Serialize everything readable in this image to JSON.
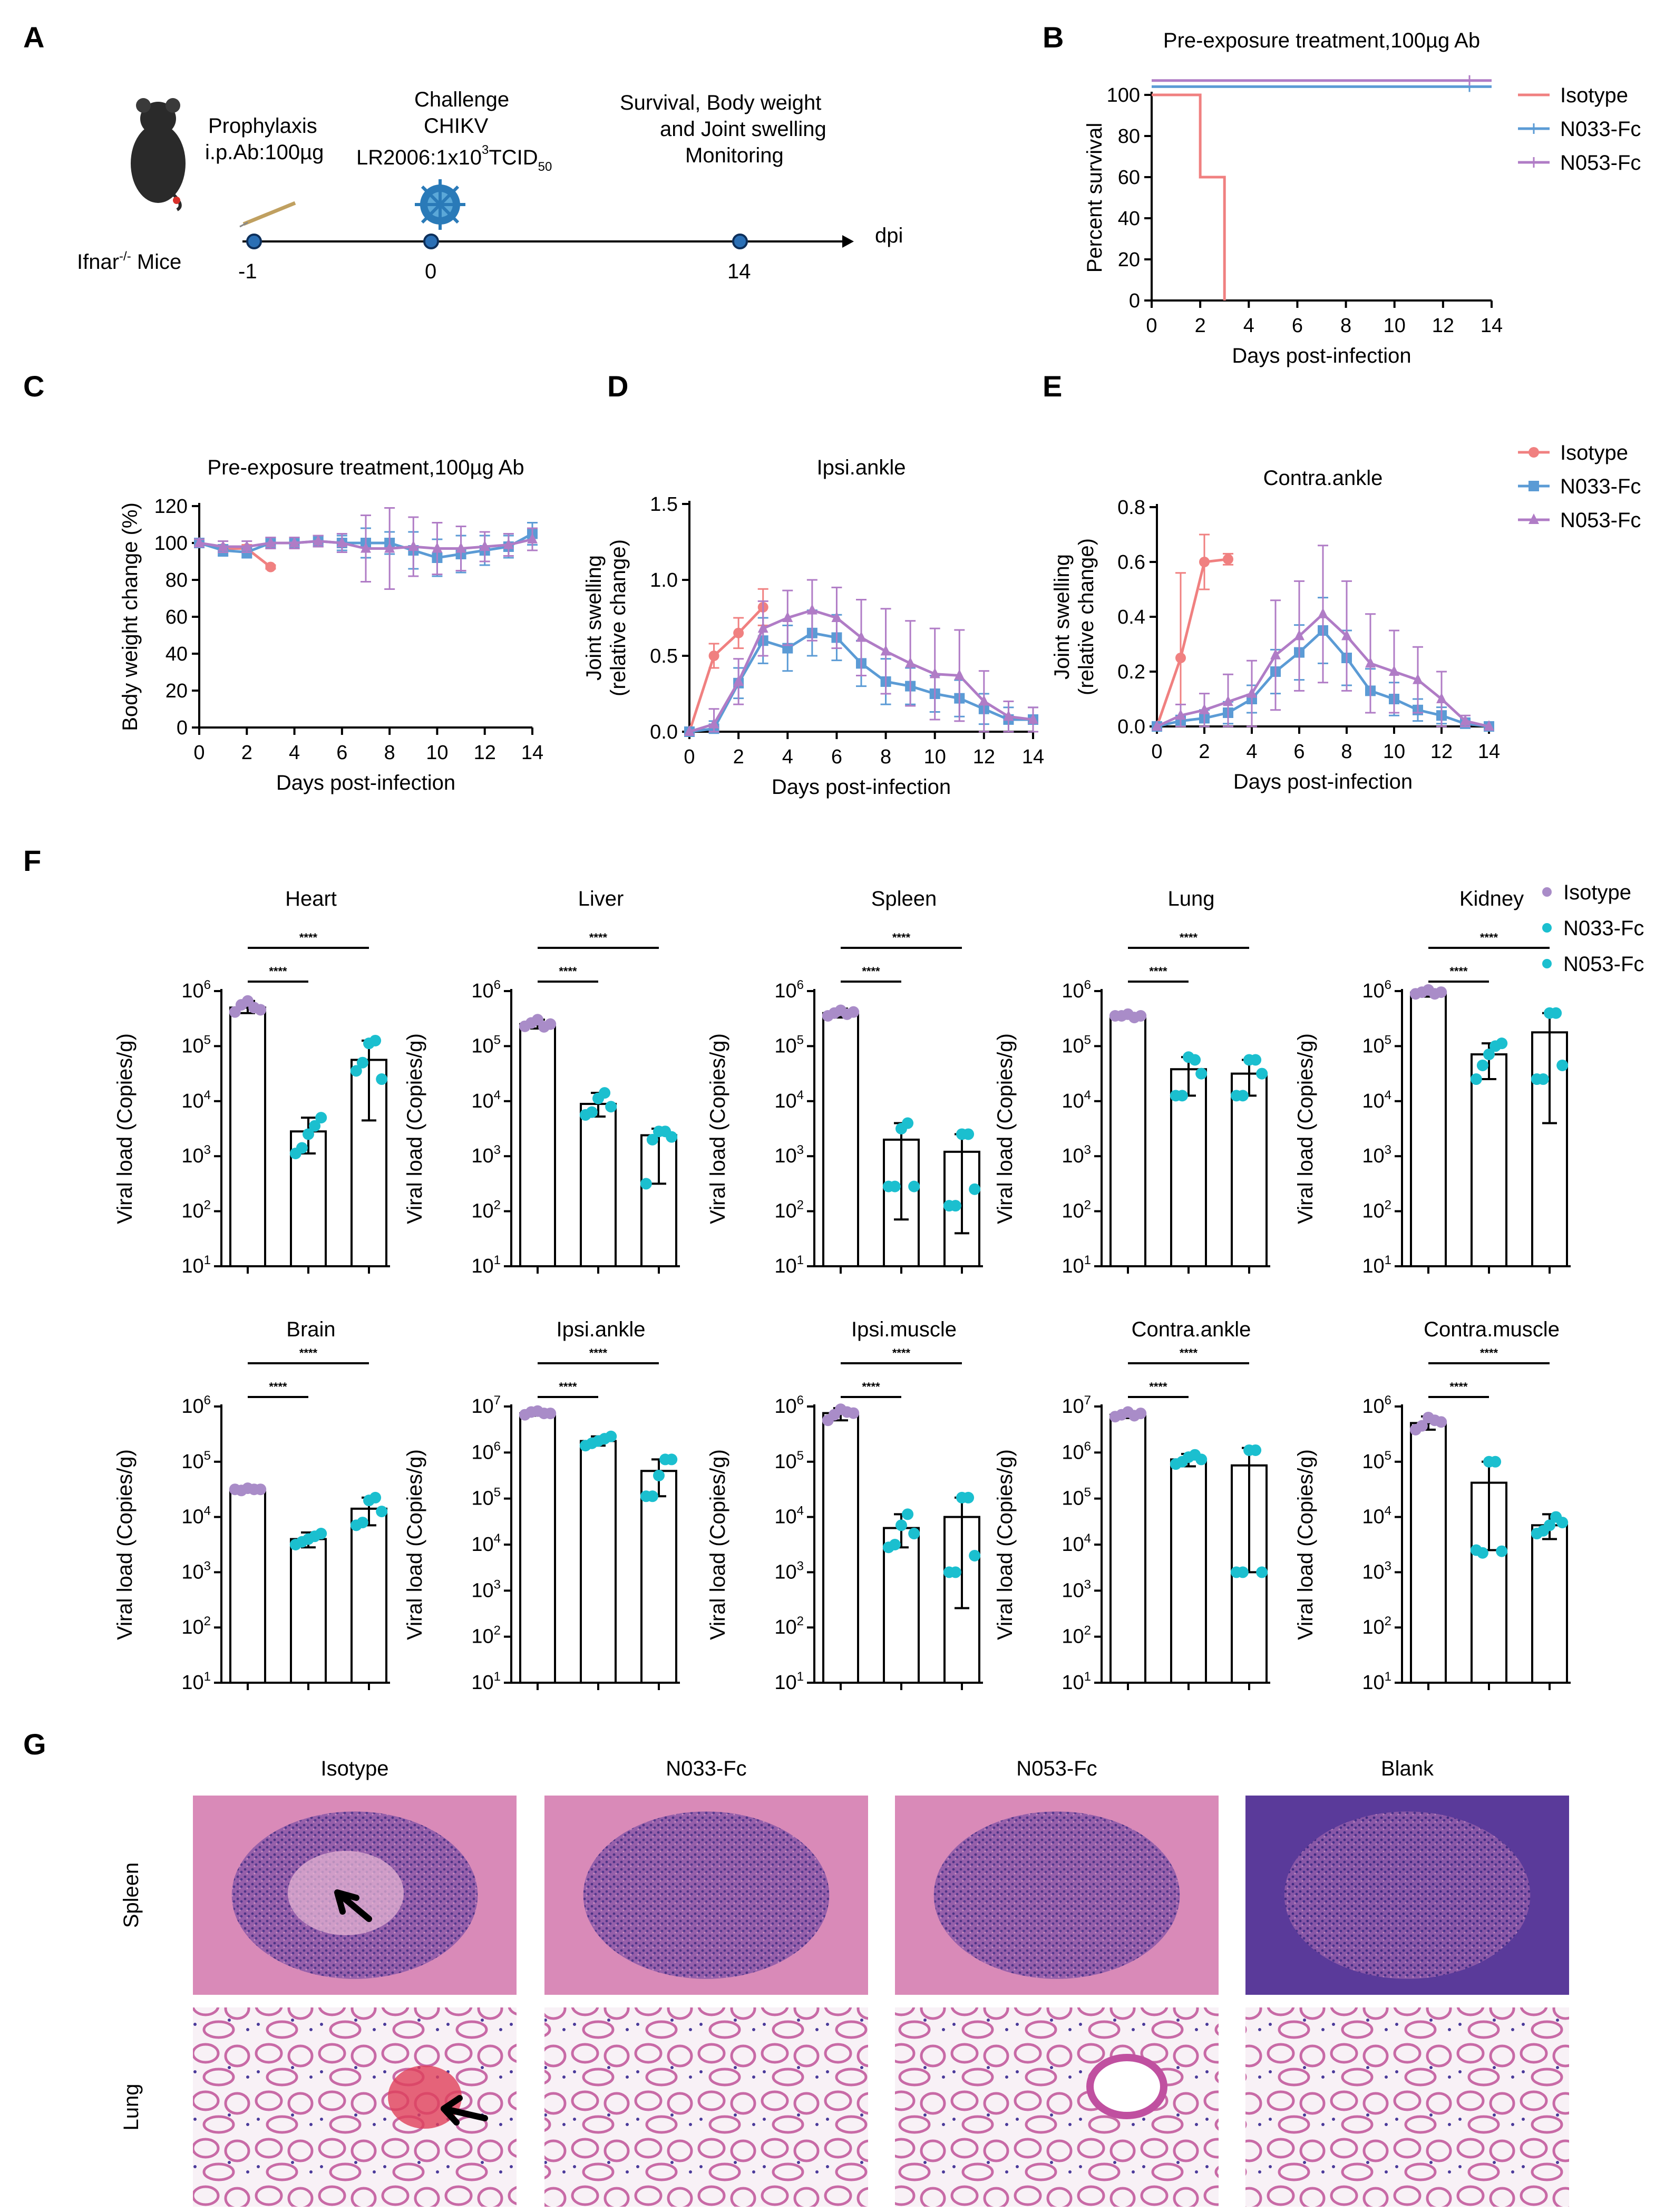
{
  "labels": {
    "A": "A",
    "B": "B",
    "C": "C",
    "D": "D",
    "E": "E",
    "F": "F",
    "G": "G"
  },
  "colors": {
    "isotype": "#f08080",
    "n033": "#5b9bd5",
    "n053": "#b07cc6",
    "dot_iso": "#a98cc8",
    "dot_ab": "#1bbfcf"
  },
  "panel_a": {
    "mouse_label": "Ifnar",
    "mouse_sup": "-/-",
    "mouse_suffix": " Mice",
    "prophylaxis": [
      "Prophylaxis",
      "i.p.Ab:100µg"
    ],
    "challenge": [
      "Challenge",
      "CHIKV"
    ],
    "challenge_dose_pre": "LR2006:1x10",
    "challenge_dose_sup": "3",
    "challenge_dose_post": "TCID",
    "challenge_dose_sub": "50",
    "monitoring": [
      "Survival, Body weight",
      "and Joint swelling",
      "Monitoring"
    ],
    "timepoints": [
      "-1",
      "0",
      "14"
    ],
    "axis_unit": "dpi",
    "icons": [
      "syringe-icon",
      "virus-icon",
      "mouse-icon"
    ]
  },
  "chart_data": [
    {
      "id": "B",
      "type": "line",
      "title": "Pre-exposure treatment,100µg Ab",
      "xlabel": "Days post-infection",
      "ylabel": "Percent survival",
      "xlim": [
        0,
        14
      ],
      "ylim": [
        0,
        100
      ],
      "xticks": [
        "0",
        "2",
        "4",
        "6",
        "8",
        "10",
        "12",
        "14"
      ],
      "yticks": [
        "0",
        "20",
        "40",
        "60",
        "80",
        "100"
      ],
      "legend": "right",
      "series": [
        {
          "name": "Isotype",
          "color": "#f08080",
          "x": [
            0,
            2,
            2,
            3,
            3
          ],
          "y": [
            100,
            100,
            60,
            60,
            0
          ]
        },
        {
          "name": "N033-Fc",
          "color": "#5b9bd5",
          "x": [
            0,
            14
          ],
          "y": [
            104,
            104
          ]
        },
        {
          "name": "N053-Fc",
          "color": "#b07cc6",
          "x": [
            0,
            14
          ],
          "y": [
            107,
            107
          ]
        }
      ]
    },
    {
      "id": "C",
      "type": "line",
      "title": "Pre-exposure treatment,100µg Ab",
      "xlabel": "Days post-infection",
      "ylabel": "Body weight change (%)",
      "xlim": [
        0,
        14
      ],
      "ylim": [
        0,
        120
      ],
      "xticks": [
        "0",
        "2",
        "4",
        "6",
        "8",
        "10",
        "12",
        "14"
      ],
      "yticks": [
        "0",
        "20",
        "40",
        "60",
        "80",
        "100",
        "120"
      ],
      "series": [
        {
          "name": "Isotype",
          "color": "#f08080",
          "x": [
            0,
            1,
            2,
            3
          ],
          "y": [
            100,
            97,
            97,
            87
          ],
          "err": [
            2,
            2,
            2,
            1
          ]
        },
        {
          "name": "N033-Fc",
          "color": "#5b9bd5",
          "x": [
            0,
            1,
            2,
            3,
            4,
            5,
            6,
            7,
            8,
            9,
            10,
            11,
            12,
            13,
            14
          ],
          "y": [
            100,
            96,
            95,
            100,
            100,
            101,
            100,
            100,
            100,
            96,
            92,
            94,
            96,
            98,
            105
          ],
          "err": [
            2,
            3,
            3,
            3,
            3,
            3,
            4,
            8,
            6,
            10,
            10,
            10,
            8,
            6,
            6
          ]
        },
        {
          "name": "N053-Fc",
          "color": "#b07cc6",
          "x": [
            0,
            1,
            2,
            3,
            4,
            5,
            6,
            7,
            8,
            9,
            10,
            11,
            12,
            13,
            14
          ],
          "y": [
            100,
            98,
            98,
            100,
            100,
            101,
            100,
            97,
            97,
            98,
            97,
            97,
            98,
            99,
            102
          ],
          "err": [
            2,
            3,
            3,
            3,
            3,
            3,
            5,
            18,
            22,
            16,
            14,
            12,
            8,
            6,
            6
          ]
        }
      ]
    },
    {
      "id": "D",
      "type": "line",
      "title": "Ipsi.ankle",
      "xlabel": "Days post-infection",
      "ylabel": "Joint swelling",
      "ylabel2": "(relative change)",
      "xlim": [
        0,
        14
      ],
      "ylim": [
        0,
        1.5
      ],
      "xticks": [
        "0",
        "2",
        "4",
        "6",
        "8",
        "10",
        "12",
        "14"
      ],
      "yticks": [
        "0.0",
        "0.5",
        "1.0",
        "1.5"
      ],
      "series": [
        {
          "name": "Isotype",
          "color": "#f08080",
          "x": [
            0,
            1,
            2,
            3
          ],
          "y": [
            0,
            0.5,
            0.65,
            0.82
          ],
          "err": [
            0,
            0.08,
            0.1,
            0.12
          ]
        },
        {
          "name": "N033-Fc",
          "color": "#5b9bd5",
          "x": [
            0,
            1,
            2,
            3,
            4,
            5,
            6,
            7,
            8,
            9,
            10,
            11,
            12,
            13,
            14
          ],
          "y": [
            0,
            0.02,
            0.32,
            0.6,
            0.55,
            0.65,
            0.62,
            0.45,
            0.33,
            0.3,
            0.25,
            0.22,
            0.15,
            0.08,
            0.08
          ],
          "err": [
            0,
            0.05,
            0.1,
            0.15,
            0.15,
            0.15,
            0.15,
            0.15,
            0.15,
            0.12,
            0.12,
            0.12,
            0.1,
            0.08,
            0.08
          ]
        },
        {
          "name": "N053-Fc",
          "color": "#b07cc6",
          "x": [
            0,
            1,
            2,
            3,
            4,
            5,
            6,
            7,
            8,
            9,
            10,
            11,
            12,
            13,
            14
          ],
          "y": [
            0,
            0.05,
            0.33,
            0.68,
            0.75,
            0.8,
            0.75,
            0.62,
            0.53,
            0.45,
            0.38,
            0.37,
            0.2,
            0.1,
            0.08
          ],
          "err": [
            0,
            0.1,
            0.15,
            0.18,
            0.18,
            0.2,
            0.2,
            0.25,
            0.28,
            0.28,
            0.3,
            0.3,
            0.2,
            0.1,
            0.08
          ]
        }
      ]
    },
    {
      "id": "E",
      "type": "line",
      "title": "Contra.ankle",
      "xlabel": "Days post-infection",
      "ylabel": "Joint swelling",
      "ylabel2": "(relative change)",
      "xlim": [
        0,
        14
      ],
      "ylim": [
        0,
        0.8
      ],
      "xticks": [
        "0",
        "2",
        "4",
        "6",
        "8",
        "10",
        "12",
        "14"
      ],
      "yticks": [
        "0.0",
        "0.2",
        "0.4",
        "0.6",
        "0.8"
      ],
      "legend": "right",
      "series": [
        {
          "name": "Isotype",
          "color": "#f08080",
          "x": [
            0,
            1,
            2,
            3
          ],
          "y": [
            0,
            0.25,
            0.6,
            0.61
          ],
          "err": [
            0,
            0.31,
            0.1,
            0.02
          ]
        },
        {
          "name": "N033-Fc",
          "color": "#5b9bd5",
          "x": [
            0,
            1,
            2,
            3,
            4,
            5,
            6,
            7,
            8,
            9,
            10,
            11,
            12,
            13,
            14
          ],
          "y": [
            0,
            0.02,
            0.03,
            0.05,
            0.1,
            0.2,
            0.27,
            0.35,
            0.25,
            0.13,
            0.1,
            0.06,
            0.04,
            0.01,
            0
          ],
          "err": [
            0,
            0.02,
            0.03,
            0.04,
            0.05,
            0.08,
            0.1,
            0.12,
            0.1,
            0.08,
            0.06,
            0.04,
            0.03,
            0.02,
            0
          ]
        },
        {
          "name": "N053-Fc",
          "color": "#b07cc6",
          "x": [
            0,
            1,
            2,
            3,
            4,
            5,
            6,
            7,
            8,
            9,
            10,
            11,
            12,
            13,
            14
          ],
          "y": [
            0,
            0.04,
            0.06,
            0.09,
            0.12,
            0.26,
            0.33,
            0.41,
            0.33,
            0.23,
            0.2,
            0.17,
            0.1,
            0.02,
            0
          ],
          "err": [
            0,
            0.04,
            0.06,
            0.1,
            0.12,
            0.2,
            0.2,
            0.25,
            0.2,
            0.18,
            0.15,
            0.12,
            0.1,
            0.02,
            0
          ]
        }
      ]
    }
  ],
  "bar_panels": {
    "ylabel": "Viral load (Copies/g)",
    "legend": [
      "Isotype",
      "N033-Fc",
      "N053-Fc"
    ],
    "sig": "****",
    "plots": [
      {
        "title": "Heart",
        "ymax": 6,
        "values": [
          5.7,
          3.45,
          4.75
        ],
        "lo": [
          5.6,
          3.05,
          3.65
        ],
        "hi": [
          5.82,
          3.7,
          5.1
        ],
        "pts": [
          [
            5.62,
            5.75,
            5.82,
            5.7,
            5.66
          ],
          [
            3.05,
            3.15,
            3.4,
            3.55,
            3.7
          ],
          [
            4.55,
            4.7,
            5.05,
            5.1,
            4.4
          ]
        ]
      },
      {
        "title": "Liver",
        "ymax": 6,
        "values": [
          5.4,
          3.95,
          3.38
        ],
        "lo": [
          5.32,
          3.72,
          2.5
        ],
        "hi": [
          5.48,
          4.15,
          3.5
        ],
        "pts": [
          [
            5.36,
            5.42,
            5.48,
            5.35,
            5.4
          ],
          [
            3.75,
            3.8,
            4.05,
            4.15,
            3.9
          ],
          [
            2.5,
            3.3,
            3.45,
            3.45,
            3.35
          ]
        ]
      },
      {
        "title": "Spleen",
        "ymax": 6,
        "values": [
          5.6,
          3.3,
          3.08
        ],
        "lo": [
          5.52,
          1.85,
          1.6
        ],
        "hi": [
          5.68,
          3.6,
          3.4
        ],
        "pts": [
          [
            5.55,
            5.6,
            5.65,
            5.58,
            5.62
          ],
          [
            2.45,
            2.45,
            3.5,
            3.6,
            2.45
          ],
          [
            2.1,
            2.1,
            3.4,
            3.4,
            2.4
          ]
        ]
      },
      {
        "title": "Lung",
        "ymax": 6,
        "values": [
          5.55,
          4.58,
          4.5
        ],
        "lo": [
          5.5,
          4.1,
          4.1
        ],
        "hi": [
          5.6,
          4.8,
          4.75
        ],
        "pts": [
          [
            5.55,
            5.55,
            5.58,
            5.52,
            5.55
          ],
          [
            4.1,
            4.1,
            4.8,
            4.75,
            4.5
          ],
          [
            4.1,
            4.1,
            4.75,
            4.75,
            4.5
          ]
        ]
      },
      {
        "title": "Kidney",
        "ymax": 6,
        "values": [
          5.97,
          4.85,
          5.25
        ],
        "lo": [
          5.9,
          4.4,
          3.6
        ],
        "hi": [
          6.03,
          5.05,
          5.6
        ],
        "pts": [
          [
            5.95,
            5.98,
            6.02,
            5.95,
            5.98
          ],
          [
            4.4,
            4.65,
            4.85,
            5.0,
            5.05
          ],
          [
            4.4,
            4.4,
            5.6,
            5.6,
            4.65
          ]
        ]
      },
      {
        "title": "Brain",
        "ymax": 6,
        "values": [
          4.5,
          3.6,
          4.15
        ],
        "lo": [
          4.45,
          3.45,
          3.85
        ],
        "hi": [
          4.55,
          3.72,
          4.35
        ],
        "pts": [
          [
            4.5,
            4.48,
            4.52,
            4.5,
            4.5
          ],
          [
            3.5,
            3.55,
            3.6,
            3.65,
            3.7
          ],
          [
            3.85,
            3.9,
            4.3,
            4.35,
            4.1
          ]
        ]
      },
      {
        "title": "Ipsi.ankle",
        "ymax": 7,
        "values": [
          6.85,
          6.25,
          5.6
        ],
        "lo": [
          6.8,
          6.15,
          5.05
        ],
        "hi": [
          6.92,
          6.35,
          5.85
        ],
        "pts": [
          [
            6.82,
            6.88,
            6.9,
            6.85,
            6.85
          ],
          [
            6.15,
            6.2,
            6.25,
            6.3,
            6.35
          ],
          [
            5.05,
            5.05,
            5.5,
            5.85,
            5.85
          ]
        ]
      },
      {
        "title": "Ipsi.muscle",
        "ymax": 6,
        "values": [
          5.88,
          3.8,
          4.0
        ],
        "lo": [
          5.75,
          3.45,
          2.35
        ],
        "hi": [
          5.97,
          4.05,
          4.35
        ],
        "pts": [
          [
            5.75,
            5.85,
            5.95,
            5.9,
            5.88
          ],
          [
            3.45,
            3.5,
            3.85,
            4.05,
            3.7
          ],
          [
            3.0,
            3.0,
            4.35,
            4.35,
            3.3
          ]
        ]
      },
      {
        "title": "Contra.ankle",
        "ymax": 7,
        "values": [
          6.82,
          5.85,
          5.72
        ],
        "lo": [
          6.75,
          5.7,
          3.4
        ],
        "hi": [
          6.9,
          5.97,
          6.1
        ],
        "pts": [
          [
            6.78,
            6.82,
            6.88,
            6.8,
            6.85
          ],
          [
            5.75,
            5.8,
            5.9,
            5.95,
            5.85
          ],
          [
            3.4,
            3.4,
            6.05,
            6.05,
            3.4
          ]
        ]
      },
      {
        "title": "Contra.muscle",
        "ymax": 6,
        "values": [
          5.7,
          4.62,
          3.85
        ],
        "lo": [
          5.58,
          3.4,
          3.6
        ],
        "hi": [
          5.82,
          5.0,
          4.05
        ],
        "pts": [
          [
            5.58,
            5.65,
            5.8,
            5.75,
            5.72
          ],
          [
            3.4,
            3.35,
            5.0,
            5.0,
            3.38
          ],
          [
            3.7,
            3.75,
            3.85,
            4.0,
            3.9
          ]
        ]
      }
    ]
  },
  "panel_g": {
    "columns": [
      "Isotype",
      "N033-Fc",
      "N053-Fc",
      "Blank"
    ],
    "rows": [
      "Spleen",
      "Lung"
    ]
  }
}
